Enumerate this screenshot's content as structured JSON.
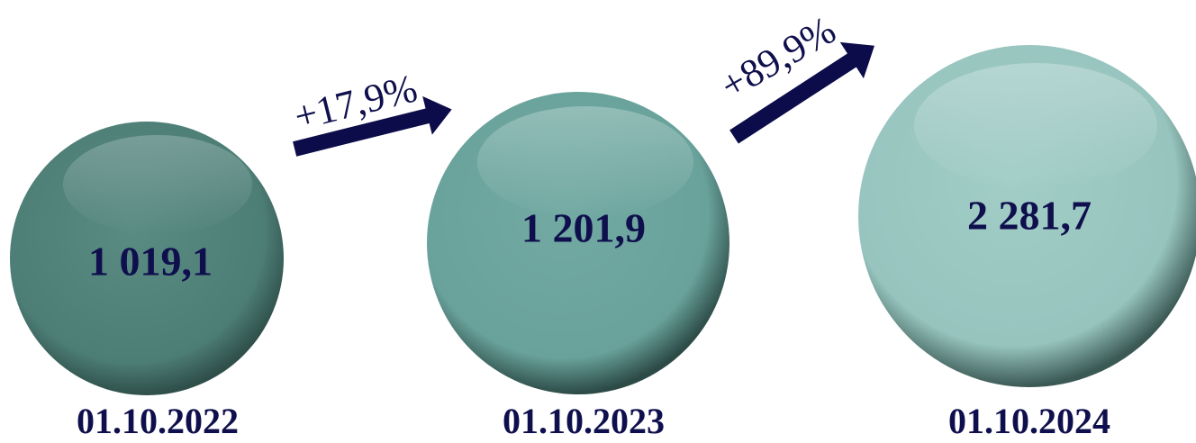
{
  "items": [
    {
      "value": "1 019,1",
      "date": "01.10.2022"
    },
    {
      "value": "1 201,9",
      "date": "01.10.2023"
    },
    {
      "value": "2 281,7",
      "date": "01.10.2024"
    }
  ],
  "changes": [
    {
      "label": "+17,9%"
    },
    {
      "label": "+89,9%"
    }
  ]
}
